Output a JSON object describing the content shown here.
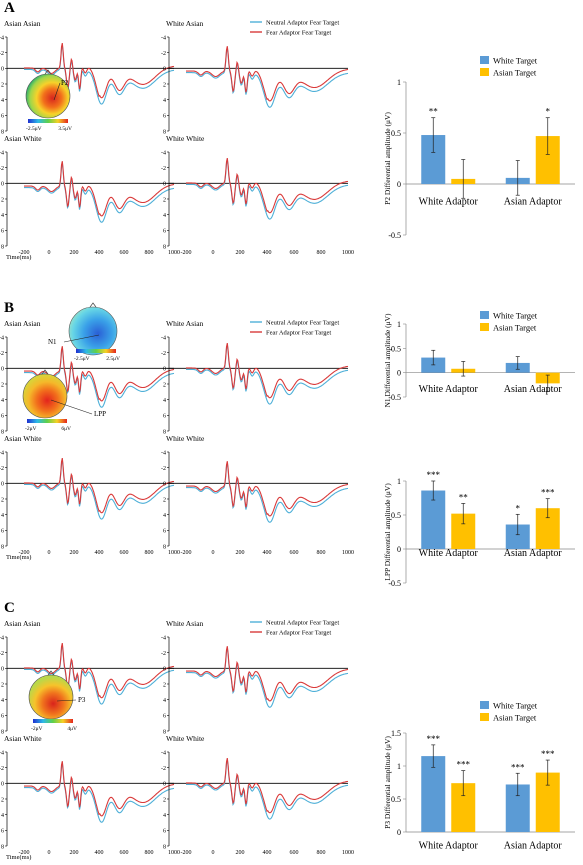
{
  "panel_labels": [
    "A",
    "B",
    "C"
  ],
  "erp_legend": [
    "Neutral Adaptor Fear Target",
    "Fear Adaptor Fear Target"
  ],
  "erp_ylabel": "Amplitude(μV)",
  "erp_xlabel": "Time(ms)",
  "erp_xticks": [
    "-200",
    "0",
    "200",
    "400",
    "600",
    "800",
    "1000"
  ],
  "erp_yticks": [
    "-4",
    "-2",
    "0",
    "2",
    "4",
    "6",
    "8"
  ],
  "bar_legend": [
    "White Target",
    "Asian Target"
  ],
  "bar_categories": [
    "White Adaptor",
    "Asian Adaptor"
  ],
  "colors": {
    "neutral": "#4fb0d8",
    "fear": "#d93a3a",
    "white_target": "#5b9bd5",
    "asian_target": "#ffc000"
  },
  "sections": [
    {
      "label": "A",
      "erp_titles": [
        "Asian Asian",
        "White Asian",
        "Asian White",
        "White White"
      ],
      "topomaps": [
        {
          "component": "P2",
          "min_label": "-2.5μV",
          "max_label": "3.5μV"
        }
      ]
    },
    {
      "label": "B",
      "erp_titles": [
        "Asian Asian",
        "White Asian",
        "Asian White",
        "White White"
      ],
      "topomaps": [
        {
          "component": "N1",
          "min_label": "-2.5μV",
          "max_label": "2.5μV"
        },
        {
          "component": "LPP",
          "min_label": "-2μV",
          "max_label": "6μV"
        }
      ]
    },
    {
      "label": "C",
      "erp_titles": [
        "Asian Asian",
        "White Asian",
        "Asian White",
        "White White"
      ],
      "topomaps": [
        {
          "component": "P3",
          "min_label": "-2μV",
          "max_label": "4μV"
        }
      ]
    }
  ],
  "chart_data": [
    {
      "type": "bar",
      "ylabel": "P2 Differential amplitude (μV)",
      "categories": [
        "White Adaptor",
        "Asian Adaptor"
      ],
      "ylim": [
        -0.5,
        1
      ],
      "yticks": [
        "1",
        "0.5",
        "0",
        "-0.5"
      ],
      "series": [
        {
          "name": "White Target",
          "values": [
            0.48,
            0.06
          ],
          "errors": [
            0.17,
            0.17
          ],
          "sig": [
            "**",
            ""
          ]
        },
        {
          "name": "Asian Target",
          "values": [
            0.05,
            0.47
          ],
          "errors": [
            0.19,
            0.18
          ],
          "sig": [
            "",
            "*"
          ]
        }
      ]
    },
    {
      "type": "bar",
      "ylabel": "N1 Differential amplitude (μV)",
      "categories": [
        "White Adaptor",
        "Asian Adaptor"
      ],
      "ylim": [
        -0.5,
        1
      ],
      "yticks": [
        "1",
        "0.5",
        "0",
        "-0.5"
      ],
      "series": [
        {
          "name": "White Target",
          "values": [
            0.31,
            0.2
          ],
          "errors": [
            0.15,
            0.13
          ],
          "sig": [
            "",
            ""
          ]
        },
        {
          "name": "Asian Target",
          "values": [
            0.08,
            -0.22
          ],
          "errors": [
            0.15,
            0.17
          ],
          "sig": [
            "",
            ""
          ]
        }
      ]
    },
    {
      "type": "bar",
      "ylabel": "LPP Differential amplitude (μV)",
      "categories": [
        "White Adaptor",
        "Asian Adaptor"
      ],
      "ylim": [
        -0.5,
        1
      ],
      "yticks": [
        "1",
        "0.5",
        "0",
        "-0.5"
      ],
      "series": [
        {
          "name": "White Target",
          "values": [
            0.86,
            0.36
          ],
          "errors": [
            0.14,
            0.15
          ],
          "sig": [
            "***",
            "*"
          ]
        },
        {
          "name": "Asian Target",
          "values": [
            0.52,
            0.6
          ],
          "errors": [
            0.15,
            0.14
          ],
          "sig": [
            "**",
            "***"
          ]
        }
      ]
    },
    {
      "type": "bar",
      "ylabel": "P3 Differential amplitude (μV)",
      "categories": [
        "White Adaptor",
        "Asian Adaptor"
      ],
      "ylim": [
        0,
        1.5
      ],
      "yticks": [
        "1.5",
        "1",
        "0.5",
        "0"
      ],
      "series": [
        {
          "name": "White Target",
          "values": [
            1.15,
            0.72
          ],
          "errors": [
            0.17,
            0.17
          ],
          "sig": [
            "***",
            "***"
          ]
        },
        {
          "name": "Asian Target",
          "values": [
            0.74,
            0.9
          ],
          "errors": [
            0.19,
            0.19
          ],
          "sig": [
            "***",
            "***"
          ]
        }
      ]
    }
  ]
}
